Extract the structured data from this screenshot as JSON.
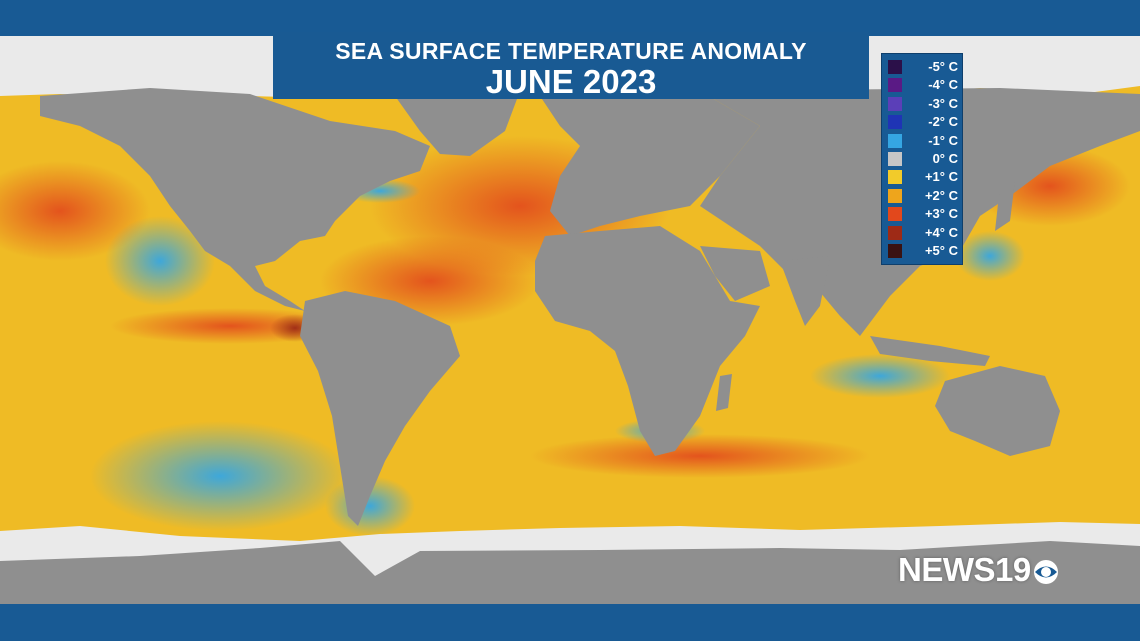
{
  "title": {
    "line1": "SEA SURFACE TEMPERATURE ANOMALY",
    "line2": "JUNE 2023"
  },
  "legend": [
    {
      "label": "-5° C",
      "color": "#2b1049"
    },
    {
      "label": "-4° C",
      "color": "#5a1a85"
    },
    {
      "label": "-3° C",
      "color": "#5b3fb8"
    },
    {
      "label": "-2° C",
      "color": "#1f34b5"
    },
    {
      "label": "-1° C",
      "color": "#35a6e3"
    },
    {
      "label": "0° C",
      "color": "#c6c6c6"
    },
    {
      "label": "+1° C",
      "color": "#f2cb2a"
    },
    {
      "label": "+2° C",
      "color": "#eea51c"
    },
    {
      "label": "+3° C",
      "color": "#e2481c"
    },
    {
      "label": "+4° C",
      "color": "#9e2a16"
    },
    {
      "label": "+5° C",
      "color": "#3a1212"
    }
  ],
  "logo": {
    "text": "NEWS19",
    "eye_icon": "cbs-eye-icon"
  },
  "colors": {
    "frame": "#185a94",
    "land": "#8f8f8f",
    "ice": "#eaeaea"
  }
}
